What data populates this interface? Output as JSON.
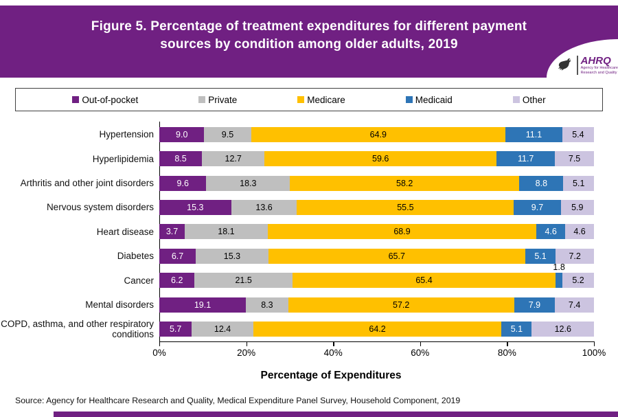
{
  "accent_color": "#702082",
  "header": {
    "title_line1": "Figure 5. Percentage of treatment expenditures for different payment",
    "title_line2": "sources by condition among older adults, 2019",
    "logo": {
      "acronym": "AHRQ",
      "tagline_line1": "Agency for Healthcare",
      "tagline_line2": "Research and Quality"
    }
  },
  "source_note": "Source: Agency for Healthcare Research and Quality, Medical Expenditure Panel Survey,  Household Component, 2019",
  "chart_data": {
    "type": "bar",
    "orientation": "horizontal",
    "stacked": true,
    "title": "Figure 5. Percentage of treatment expenditures for different payment sources by condition among older adults, 2019",
    "xlabel": "Percentage of Expenditures",
    "xlim": [
      0,
      100
    ],
    "x_ticks": [
      "0%",
      "20%",
      "40%",
      "60%",
      "80%",
      "100%"
    ],
    "grid": false,
    "legend_position": "top",
    "series_names": [
      "Out-of-pocket",
      "Private",
      "Medicare",
      "Medicaid",
      "Other"
    ],
    "series_colors": [
      "#702082",
      "#BFBFBF",
      "#FFC000",
      "#2E75B6",
      "#CCC4E0"
    ],
    "white_label_series": [
      0,
      3
    ],
    "rows": [
      {
        "category": "Hypertension",
        "values": [
          9.0,
          9.5,
          64.9,
          11.1,
          5.4
        ]
      },
      {
        "category": "Hyperlipidemia",
        "values": [
          8.5,
          12.7,
          59.6,
          11.7,
          7.5
        ]
      },
      {
        "category": "Arthritis and other joint disorders",
        "values": [
          9.6,
          18.3,
          58.2,
          8.8,
          5.1
        ]
      },
      {
        "category": "Nervous system disorders",
        "values": [
          15.3,
          13.6,
          55.5,
          9.7,
          5.9
        ]
      },
      {
        "category": "Heart disease",
        "values": [
          3.7,
          18.1,
          68.9,
          4.6,
          4.6
        ]
      },
      {
        "category": "Diabetes",
        "values": [
          6.7,
          15.3,
          65.7,
          5.1,
          7.2
        ]
      },
      {
        "category": "Cancer",
        "values": [
          6.2,
          21.5,
          65.4,
          1.8,
          5.2
        ],
        "label_above_series": [
          3
        ]
      },
      {
        "category": "Mental disorders",
        "values": [
          19.1,
          8.3,
          57.2,
          7.9,
          7.4
        ]
      },
      {
        "category": "COPD, asthma, and other respiratory conditions",
        "values": [
          5.7,
          12.4,
          64.2,
          5.1,
          12.6
        ]
      }
    ]
  }
}
